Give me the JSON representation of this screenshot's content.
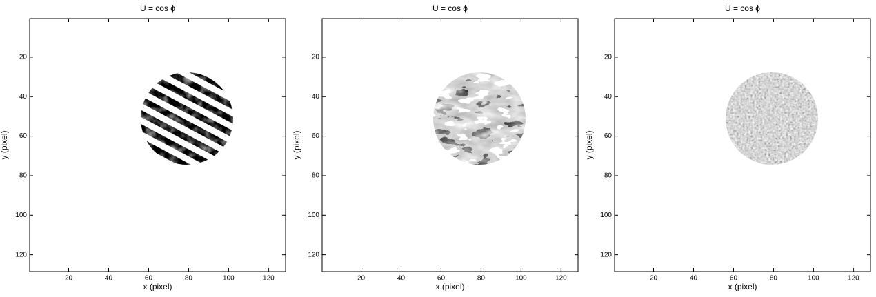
{
  "chart_data": [
    {
      "type": "heatmap",
      "title": "U = cos ϕ",
      "xlabel": "x (pixel)",
      "ylabel": "y (pixel)",
      "xlim": [
        0.5,
        128.5
      ],
      "ylim": [
        0.5,
        128.5
      ],
      "y_inverted": true,
      "xticks": [
        20,
        40,
        60,
        80,
        100,
        120
      ],
      "yticks": [
        20,
        40,
        60,
        80,
        100,
        120
      ]
    },
    {
      "type": "heatmap",
      "title": "U = cos ϕ",
      "xlabel": "x (pixel)",
      "ylabel": "y (pixel)",
      "xlim": [
        0.5,
        128.5
      ],
      "ylim": [
        0.5,
        128.5
      ],
      "y_inverted": true,
      "xticks": [
        20,
        40,
        60,
        80,
        100,
        120
      ],
      "yticks": [
        20,
        40,
        60,
        80,
        100,
        120
      ]
    },
    {
      "type": "heatmap",
      "title": "U = cos ϕ",
      "xlabel": "x (pixel)",
      "ylabel": "y (pixel)",
      "xlim": [
        0.5,
        128.5
      ],
      "ylim": [
        0.5,
        128.5
      ],
      "y_inverted": true,
      "xticks": [
        20,
        40,
        60,
        80,
        100,
        120
      ],
      "yticks": [
        20,
        40,
        60,
        80,
        100,
        120
      ]
    }
  ]
}
